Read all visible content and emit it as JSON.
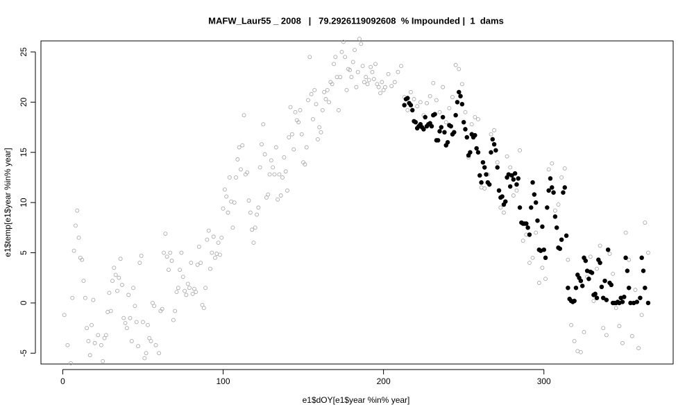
{
  "chart_data": {
    "type": "scatter",
    "title": "MAFW_Laur55 _ 2008   |   79.2926119092608  % Impounded |  1  dams",
    "x_label": "e1$dOY[e1$year %in% year]",
    "y_label": "e1$temp[e1$year %in% year]",
    "xlim": [
      -13.6,
      380.6
    ],
    "xticks": [
      0,
      100,
      200,
      300
    ],
    "ylim": [
      -6.08,
      26.1
    ],
    "yticks": [
      -5,
      0,
      5,
      10,
      15,
      20,
      25
    ],
    "series": [
      {
        "color": "#aaaaaa",
        "marker": "open",
        "x": [
          1,
          3,
          5,
          6,
          7,
          8,
          9,
          10,
          11,
          12,
          13,
          14,
          15,
          16,
          17,
          18,
          19,
          20,
          22,
          24,
          25,
          26,
          27,
          28,
          29,
          30,
          31,
          32,
          33,
          34,
          35,
          36,
          37,
          38,
          39,
          40,
          41,
          42,
          43,
          44,
          45,
          46,
          47,
          48,
          49,
          50,
          51,
          52,
          53,
          54,
          55,
          56,
          57,
          58,
          60,
          61,
          62,
          63,
          64,
          65,
          66,
          67,
          68,
          69,
          70,
          71,
          72,
          73,
          74,
          75,
          76,
          77,
          78,
          79,
          80,
          81,
          82,
          83,
          84,
          85,
          86,
          87,
          88,
          89,
          90,
          91,
          92,
          93,
          94,
          95,
          96,
          97,
          98,
          99,
          100,
          101,
          102,
          103,
          104,
          105,
          106,
          107,
          108,
          109,
          110,
          111,
          112,
          113,
          114,
          115,
          116,
          117,
          118,
          119,
          120,
          121,
          122,
          123,
          124,
          125,
          126,
          127,
          128,
          129,
          130,
          131,
          132,
          133,
          134,
          135,
          136,
          137,
          138,
          139,
          140,
          141,
          142,
          143,
          144,
          145,
          146,
          147,
          148,
          149,
          150,
          151,
          152,
          153,
          154,
          155,
          156,
          157,
          158,
          159,
          160,
          161,
          162,
          163,
          164,
          165,
          166,
          167,
          168,
          169,
          170,
          171,
          172,
          173,
          174,
          175,
          176,
          177,
          178,
          179,
          180,
          181,
          182,
          183,
          184,
          185,
          186,
          187,
          188,
          189,
          190,
          191,
          192,
          193,
          194,
          195,
          196,
          197,
          198,
          199,
          200,
          201,
          203,
          205,
          207,
          209,
          211,
          213,
          215,
          217,
          219,
          221,
          223,
          225,
          227,
          229,
          231,
          233,
          235,
          237,
          239,
          241,
          243,
          245,
          247,
          249,
          251,
          253,
          255,
          257,
          259,
          261,
          263,
          265,
          267,
          269,
          271,
          273,
          275,
          277,
          279,
          281,
          283,
          285,
          287,
          289,
          291,
          293,
          295,
          297,
          299,
          301,
          303,
          305,
          307,
          309,
          311,
          313,
          315,
          317,
          319,
          321,
          323,
          325,
          327,
          329,
          331,
          333,
          335,
          337,
          339,
          341,
          343,
          345,
          347,
          349,
          351,
          353,
          355,
          357,
          359,
          361,
          363,
          365
        ],
        "values": [
          -1.2,
          -4.2,
          -6.0,
          0.5,
          5.2,
          7.7,
          9.2,
          6.5,
          4.5,
          4.3,
          2.2,
          0.5,
          -2.5,
          -3.8,
          -5.2,
          -2.2,
          0.3,
          -4.0,
          -3.2,
          -4.2,
          -5.8,
          -3.5,
          -3.2,
          -0.9,
          1.0,
          -0.8,
          2.2,
          3.5,
          2.8,
          1.2,
          2.5,
          4.4,
          1.8,
          -1.5,
          -2.0,
          -2.5,
          0.8,
          -1.5,
          -3.8,
          1.5,
          -0.3,
          -1.9,
          -4.3,
          4.0,
          4.7,
          -1.9,
          -5.5,
          -5.0,
          -2.2,
          -3.5,
          -3.8,
          0.0,
          -0.3,
          -4.2,
          -5.0,
          -0.8,
          -0.6,
          5.0,
          6.9,
          4.6,
          3.3,
          5.0,
          4.2,
          -1.7,
          -0.8,
          1.1,
          1.5,
          3.3,
          5.0,
          2.6,
          1.2,
          0.8,
          1.9,
          1.5,
          4.0,
          0.9,
          1.4,
          1.1,
          3.8,
          5.6,
          4.0,
          -0.2,
          -0.5,
          1.5,
          6.3,
          7.2,
          3.4,
          5.0,
          6.6,
          4.5,
          4.9,
          6.0,
          4.8,
          6.5,
          9.4,
          11.3,
          10.6,
          9.0,
          12.5,
          10.1,
          7.5,
          10.0,
          12.5,
          14.3,
          15.5,
          13.3,
          15.7,
          18.7,
          12.8,
          13.0,
          10.2,
          9.0,
          7.3,
          6.0,
          7.5,
          8.8,
          9.5,
          13.5,
          15.8,
          17.8,
          14.8,
          10.5,
          10.8,
          12.8,
          14.2,
          13.5,
          12.8,
          15.5,
          10.3,
          12.8,
          10.7,
          12.5,
          14.5,
          13.1,
          11.2,
          16.5,
          19.5,
          16.8,
          15.3,
          19.0,
          18.2,
          18.0,
          19.2,
          16.8,
          14.0,
          13.8,
          15.5,
          20.2,
          24.5,
          20.8,
          18.3,
          21.2,
          19.8,
          16.3,
          17.5,
          17.0,
          19.2,
          21.0,
          20.3,
          21.2,
          20.0,
          22.0,
          21.8,
          23.8,
          24.5,
          22.5,
          19.2,
          22.5,
          25.0,
          26.0,
          24.5,
          21.2,
          23.3,
          23.2,
          22.5,
          24.0,
          25.2,
          21.5,
          23.0,
          26.3,
          25.8,
          23.6,
          22.0,
          22.5,
          21.8,
          22.2,
          23.5,
          23.0,
          22.3,
          23.8,
          21.8,
          21.5,
          20.9,
          22.0,
          21.2,
          21.5,
          22.8,
          21.6,
          22.0,
          23.0,
          23.6,
          20.5,
          19.2,
          21.0,
          20.3,
          19.6,
          20.0,
          18.7,
          19.9,
          20.6,
          21.9,
          20.2,
          19.0,
          21.5,
          18.0,
          19.4,
          20.5,
          23.7,
          23.3,
          21.8,
          19.0,
          14.5,
          17.8,
          18.5,
          18.3,
          11.5,
          11.4,
          12.8,
          16.8,
          17.2,
          14.0,
          9.5,
          9.0,
          14.6,
          13.5,
          10.7,
          11.2,
          15.2,
          6.2,
          6.8,
          4.0,
          4.5,
          7.0,
          2.0,
          3.5,
          2.4,
          13.3,
          13.9,
          9.2,
          9.8,
          12.5,
          13.4,
          4.3,
          -2.2,
          -3.8,
          -4.8,
          -4.9,
          -2.9,
          2.6,
          4.6,
          0.2,
          3.4,
          5.7,
          -2.5,
          -3.2,
          4.9,
          2.9,
          -0.5,
          -2.3,
          -4.0,
          7.0,
          4.3,
          -3.3,
          1.3,
          -4.5,
          -1.2,
          8.0,
          5.0
        ]
      },
      {
        "color": "#000000",
        "marker": "filled",
        "x": [
          213,
          214,
          215,
          216,
          217,
          218,
          219,
          220,
          221,
          222,
          223,
          224,
          225,
          226,
          227,
          228,
          229,
          230,
          231,
          232,
          233,
          234,
          235,
          236,
          237,
          238,
          239,
          240,
          241,
          242,
          243,
          244,
          245,
          246,
          247,
          248,
          249,
          250,
          251,
          252,
          253,
          254,
          255,
          256,
          257,
          258,
          259,
          260,
          261,
          262,
          263,
          264,
          265,
          266,
          267,
          268,
          269,
          270,
          271,
          272,
          273,
          274,
          275,
          276,
          277,
          278,
          279,
          280,
          281,
          282,
          283,
          284,
          285,
          286,
          287,
          288,
          289,
          290,
          291,
          292,
          293,
          294,
          295,
          296,
          297,
          298,
          299,
          300,
          301,
          302,
          303,
          304,
          305,
          306,
          307,
          308,
          309,
          310,
          311,
          312,
          313,
          314,
          315,
          316,
          317,
          318,
          319,
          320,
          321,
          322,
          323,
          324,
          325,
          326,
          327,
          328,
          329,
          330,
          331,
          332,
          333,
          334,
          335,
          336,
          337,
          338,
          339,
          340,
          341,
          342,
          343,
          344,
          345,
          346,
          347,
          348,
          349,
          350,
          351,
          352,
          353,
          354,
          356,
          358,
          360,
          361,
          362,
          363,
          365
        ],
        "values": [
          19.7,
          20.3,
          20.4,
          19.9,
          19.7,
          19.2,
          18.1,
          18.0,
          17.4,
          17.6,
          17.8,
          17.5,
          17.3,
          18.5,
          17.6,
          17.8,
          17.9,
          17.6,
          18.7,
          18.8,
          16.2,
          16.2,
          17.1,
          17.5,
          18.5,
          17.0,
          15.7,
          16.0,
          17.7,
          17.6,
          16.8,
          17.0,
          18.7,
          20.0,
          21.0,
          20.6,
          19.8,
          18.0,
          17.3,
          16.5,
          14.7,
          15.0,
          16.8,
          16.5,
          16.7,
          15.4,
          15.0,
          12.7,
          12.0,
          14.0,
          13.5,
          12.8,
          12.0,
          11.8,
          15.0,
          16.3,
          15.8,
          15.2,
          13.5,
          11.2,
          10.5,
          10.6,
          9.8,
          10.1,
          12.5,
          12.8,
          11.6,
          12.7,
          12.3,
          12.9,
          11.8,
          12.4,
          9.5,
          8.0,
          7.9,
          7.9,
          7.9,
          7.5,
          6.8,
          9.5,
          12.0,
          10.8,
          10.0,
          8.2,
          5.3,
          5.2,
          7.6,
          5.3,
          4.5,
          9.5,
          11.2,
          12.4,
          11.5,
          11.0,
          8.6,
          7.5,
          5.5,
          5.4,
          6.3,
          11.0,
          11.5,
          6.7,
          1.5,
          0.4,
          0.2,
          0.1,
          0.2,
          1.5,
          2.8,
          2.5,
          2.2,
          1.7,
          4.5,
          4.2,
          3.2,
          2.4,
          3.1,
          3.0,
          0.8,
          0.9,
          0.5,
          4.3,
          4.0,
          1.6,
          0.5,
          2.2,
          0.3,
          5.3,
          2.0,
          1.8,
          0.0,
          0.0,
          0.0,
          0.1,
          0.0,
          0.5,
          0.1,
          0.6,
          4.5,
          3.2,
          1.5,
          0.0,
          0.0,
          0.1,
          0.5,
          4.5,
          3.2,
          1.5,
          0.0
        ]
      }
    ]
  }
}
